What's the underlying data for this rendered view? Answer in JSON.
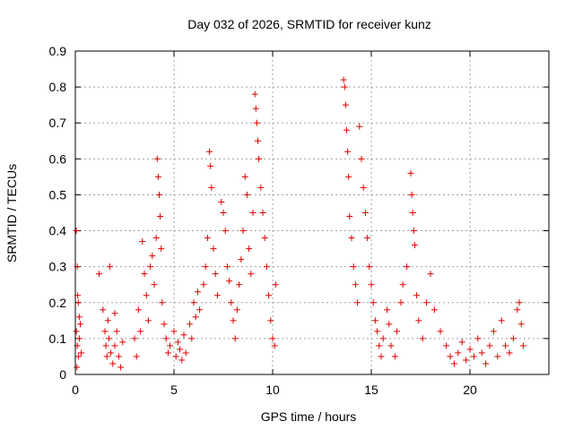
{
  "chart_data": {
    "type": "scatter",
    "title": "Day 032 of 2026, SRMTID for receiver kunz",
    "xlabel": "GPS time / hours",
    "ylabel": "SRMTID / TECUs",
    "xlim": [
      0,
      24
    ],
    "ylim": [
      0,
      0.9
    ],
    "xticks": [
      0,
      5,
      10,
      15,
      20
    ],
    "xtick_labels": [
      "0",
      "5",
      "10",
      "15",
      "20"
    ],
    "yticks": [
      0,
      0.1,
      0.2,
      0.3,
      0.4,
      0.5,
      0.6,
      0.7,
      0.8,
      0.9
    ],
    "ytick_labels": [
      "0",
      "0.1",
      "0.2",
      "0.3",
      "0.4",
      "0.5",
      "0.6",
      "0.7",
      "0.8",
      "0.9"
    ],
    "grid": true,
    "marker": "+",
    "color": "#e00000",
    "series": [
      {
        "name": "SRMTID",
        "points": [
          [
            0.05,
            0.4
          ],
          [
            0.1,
            0.3
          ],
          [
            0.12,
            0.22
          ],
          [
            0.15,
            0.2
          ],
          [
            0.2,
            0.16
          ],
          [
            0.05,
            0.12
          ],
          [
            0.1,
            0.08
          ],
          [
            0.15,
            0.05
          ],
          [
            0.08,
            0.02
          ],
          [
            0.2,
            0.1
          ],
          [
            0.25,
            0.14
          ],
          [
            0.3,
            0.06
          ],
          [
            1.2,
            0.28
          ],
          [
            1.4,
            0.18
          ],
          [
            1.5,
            0.12
          ],
          [
            1.55,
            0.08
          ],
          [
            1.6,
            0.05
          ],
          [
            1.7,
            0.1
          ],
          [
            1.8,
            0.06
          ],
          [
            1.9,
            0.03
          ],
          [
            1.75,
            0.3
          ],
          [
            2.0,
            0.08
          ],
          [
            2.1,
            0.12
          ],
          [
            2.2,
            0.05
          ],
          [
            2.3,
            0.02
          ],
          [
            2.4,
            0.09
          ],
          [
            1.65,
            0.15
          ],
          [
            2.0,
            0.17
          ],
          [
            3.0,
            0.1
          ],
          [
            3.1,
            0.05
          ],
          [
            3.2,
            0.18
          ],
          [
            3.3,
            0.12
          ],
          [
            3.4,
            0.37
          ],
          [
            3.5,
            0.28
          ],
          [
            3.6,
            0.22
          ],
          [
            3.7,
            0.15
          ],
          [
            3.8,
            0.3
          ],
          [
            3.9,
            0.33
          ],
          [
            4.0,
            0.25
          ],
          [
            4.1,
            0.38
          ],
          [
            4.15,
            0.6
          ],
          [
            4.2,
            0.55
          ],
          [
            4.25,
            0.5
          ],
          [
            4.3,
            0.44
          ],
          [
            4.35,
            0.35
          ],
          [
            4.4,
            0.2
          ],
          [
            4.5,
            0.14
          ],
          [
            4.6,
            0.1
          ],
          [
            4.7,
            0.06
          ],
          [
            4.8,
            0.08
          ],
          [
            5.0,
            0.12
          ],
          [
            5.1,
            0.05
          ],
          [
            5.2,
            0.09
          ],
          [
            5.3,
            0.07
          ],
          [
            5.4,
            0.04
          ],
          [
            5.5,
            0.11
          ],
          [
            5.6,
            0.06
          ],
          [
            5.8,
            0.14
          ],
          [
            5.9,
            0.1
          ],
          [
            6.0,
            0.2
          ],
          [
            6.1,
            0.16
          ],
          [
            6.2,
            0.23
          ],
          [
            6.3,
            0.18
          ],
          [
            6.5,
            0.25
          ],
          [
            6.6,
            0.3
          ],
          [
            6.7,
            0.38
          ],
          [
            6.8,
            0.62
          ],
          [
            6.85,
            0.58
          ],
          [
            6.9,
            0.52
          ],
          [
            7.0,
            0.35
          ],
          [
            7.1,
            0.28
          ],
          [
            7.2,
            0.22
          ],
          [
            7.4,
            0.48
          ],
          [
            7.5,
            0.45
          ],
          [
            7.6,
            0.4
          ],
          [
            7.7,
            0.3
          ],
          [
            7.8,
            0.26
          ],
          [
            7.9,
            0.2
          ],
          [
            8.0,
            0.15
          ],
          [
            8.1,
            0.1
          ],
          [
            8.2,
            0.18
          ],
          [
            8.3,
            0.25
          ],
          [
            8.4,
            0.32
          ],
          [
            8.5,
            0.4
          ],
          [
            8.6,
            0.55
          ],
          [
            8.7,
            0.5
          ],
          [
            8.8,
            0.35
          ],
          [
            8.9,
            0.28
          ],
          [
            9.0,
            0.45
          ],
          [
            9.1,
            0.78
          ],
          [
            9.15,
            0.74
          ],
          [
            9.2,
            0.7
          ],
          [
            9.25,
            0.65
          ],
          [
            9.3,
            0.6
          ],
          [
            9.4,
            0.52
          ],
          [
            9.5,
            0.45
          ],
          [
            9.6,
            0.38
          ],
          [
            9.7,
            0.3
          ],
          [
            9.8,
            0.22
          ],
          [
            9.9,
            0.15
          ],
          [
            10.0,
            0.1
          ],
          [
            10.1,
            0.08
          ],
          [
            10.15,
            0.25
          ],
          [
            13.6,
            0.82
          ],
          [
            13.65,
            0.8
          ],
          [
            13.7,
            0.75
          ],
          [
            13.75,
            0.68
          ],
          [
            13.8,
            0.62
          ],
          [
            13.85,
            0.55
          ],
          [
            13.9,
            0.44
          ],
          [
            14.0,
            0.38
          ],
          [
            14.1,
            0.3
          ],
          [
            14.2,
            0.25
          ],
          [
            14.3,
            0.2
          ],
          [
            14.4,
            0.69
          ],
          [
            14.5,
            0.6
          ],
          [
            14.6,
            0.52
          ],
          [
            14.7,
            0.45
          ],
          [
            14.8,
            0.38
          ],
          [
            14.9,
            0.3
          ],
          [
            15.0,
            0.25
          ],
          [
            15.1,
            0.2
          ],
          [
            15.2,
            0.15
          ],
          [
            15.3,
            0.12
          ],
          [
            15.4,
            0.08
          ],
          [
            15.5,
            0.05
          ],
          [
            15.6,
            0.1
          ],
          [
            15.8,
            0.18
          ],
          [
            15.9,
            0.14
          ],
          [
            16.0,
            0.08
          ],
          [
            16.2,
            0.05
          ],
          [
            16.3,
            0.12
          ],
          [
            16.5,
            0.2
          ],
          [
            16.6,
            0.25
          ],
          [
            16.8,
            0.3
          ],
          [
            17.0,
            0.56
          ],
          [
            17.05,
            0.5
          ],
          [
            17.1,
            0.45
          ],
          [
            17.15,
            0.4
          ],
          [
            17.2,
            0.36
          ],
          [
            17.3,
            0.22
          ],
          [
            17.4,
            0.15
          ],
          [
            17.6,
            0.1
          ],
          [
            17.8,
            0.2
          ],
          [
            18.0,
            0.28
          ],
          [
            18.2,
            0.18
          ],
          [
            18.5,
            0.12
          ],
          [
            18.8,
            0.08
          ],
          [
            19.0,
            0.05
          ],
          [
            19.2,
            0.03
          ],
          [
            19.4,
            0.06
          ],
          [
            19.6,
            0.09
          ],
          [
            19.8,
            0.04
          ],
          [
            20.0,
            0.07
          ],
          [
            20.2,
            0.05
          ],
          [
            20.4,
            0.1
          ],
          [
            20.6,
            0.06
          ],
          [
            20.8,
            0.03
          ],
          [
            21.0,
            0.08
          ],
          [
            21.2,
            0.12
          ],
          [
            21.4,
            0.05
          ],
          [
            21.6,
            0.15
          ],
          [
            21.8,
            0.08
          ],
          [
            22.0,
            0.06
          ],
          [
            22.2,
            0.1
          ],
          [
            22.4,
            0.18
          ],
          [
            22.5,
            0.2
          ],
          [
            22.6,
            0.14
          ],
          [
            22.7,
            0.08
          ]
        ]
      }
    ]
  }
}
